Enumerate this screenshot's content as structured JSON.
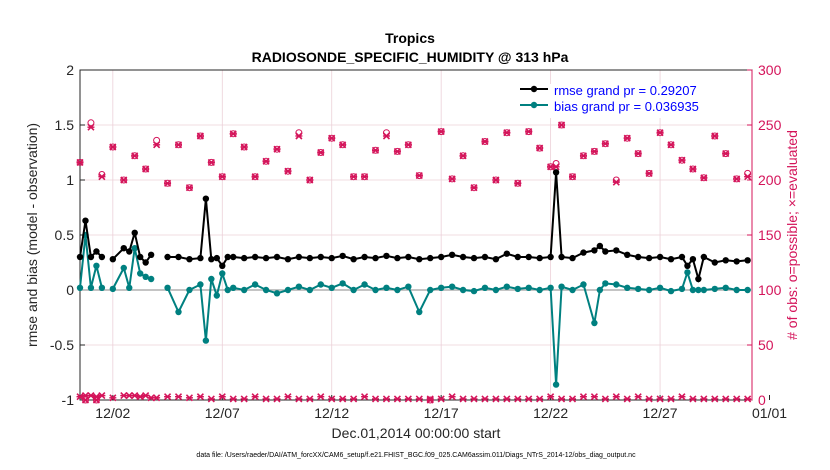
{
  "chart_data": {
    "type": "line",
    "title": "Tropics",
    "subtitle": "RADIOSONDE_SPECIFIC_HUMIDITY @ 313 hPa",
    "xlabel": "Dec.01,2014 00:00:00 start",
    "ylabel": "rmse and bias (model - observation)",
    "y2label": "# of obs: o=possible; ×=evaluated",
    "footnote": "data file: /Users/raeder/DAI/ATM_forcXX/CAM6_setup/f.e21.FHIST_BGC.f09_025.CAM6assim.011/Diags_NTrS_2014-12/obs_diag_output.nc",
    "xlim": [
      0.5,
      31.2
    ],
    "ylim": [
      -1,
      2
    ],
    "y2lim": [
      0,
      300
    ],
    "x_ticks": [
      2,
      7,
      12,
      17,
      22,
      27,
      32
    ],
    "x_tick_labels": [
      "12/02",
      "12/07",
      "12/12",
      "12/17",
      "12/22",
      "12/27",
      "01/01"
    ],
    "y_ticks": [
      -1,
      -0.5,
      0,
      0.5,
      1,
      1.5,
      2
    ],
    "y_tick_labels": [
      "-1",
      "-0.5",
      "0",
      "0.5",
      "1",
      "1.5",
      "2"
    ],
    "y2_ticks": [
      0,
      50,
      100,
      150,
      200,
      250,
      300
    ],
    "y2_tick_labels": [
      "0",
      "50",
      "100",
      "150",
      "200",
      "250",
      "300"
    ],
    "legend": {
      "placement": "top-right",
      "entries": [
        "rmse grand pr = 0.29207",
        "bias grand pr = 0.036935"
      ],
      "text_color": "#0000ff"
    },
    "colors": {
      "rmse": "#000000",
      "bias": "#008080",
      "obs": "#d4145a",
      "zero_line": "#b0b0b0",
      "text": "#262626",
      "grid": "#ebd0d8"
    },
    "series": [
      {
        "name": "rmse",
        "x": [
          0.5,
          0.75,
          1.0,
          1.25,
          1.5,
          1.75,
          2.0,
          2.5,
          2.75,
          3.0,
          3.25,
          3.5,
          3.75,
          4.0,
          4.5,
          5.0,
          5.5,
          6.0,
          6.25,
          6.5,
          6.75,
          7.0,
          7.25,
          7.5,
          8.0,
          8.5,
          9.0,
          9.5,
          10.0,
          10.5,
          11.0,
          11.5,
          12.0,
          12.5,
          13.0,
          13.5,
          14.0,
          14.5,
          15.0,
          15.5,
          16.0,
          16.5,
          17.0,
          17.5,
          18.0,
          18.5,
          19.0,
          19.5,
          20.0,
          20.5,
          21.0,
          21.5,
          22.0,
          22.25,
          22.5,
          23.0,
          23.5,
          24.0,
          24.25,
          24.5,
          25.0,
          25.5,
          26.0,
          26.5,
          27.0,
          27.5,
          28.0,
          28.25,
          28.5,
          28.75,
          29.0,
          29.5,
          30.0,
          30.5,
          31.0
        ],
        "y": [
          0.3,
          0.63,
          0.3,
          0.35,
          0.3,
          null,
          0.28,
          0.38,
          0.35,
          0.52,
          0.3,
          0.25,
          0.32,
          null,
          0.3,
          0.3,
          0.28,
          0.29,
          0.83,
          0.28,
          0.29,
          0.22,
          0.3,
          0.3,
          0.29,
          0.3,
          0.29,
          0.3,
          0.28,
          0.3,
          0.29,
          0.3,
          0.29,
          0.31,
          0.28,
          0.3,
          0.29,
          0.31,
          0.29,
          0.3,
          0.28,
          0.29,
          0.3,
          0.32,
          0.3,
          0.29,
          0.3,
          0.28,
          0.33,
          0.3,
          0.3,
          0.29,
          0.3,
          1.07,
          0.3,
          0.29,
          0.34,
          0.36,
          0.4,
          0.35,
          0.36,
          0.32,
          0.3,
          0.29,
          0.3,
          0.28,
          0.3,
          0.22,
          0.28,
          0.1,
          0.3,
          0.25,
          0.27,
          0.26,
          0.27
        ]
      },
      {
        "name": "bias",
        "x": [
          0.5,
          0.75,
          1.0,
          1.25,
          1.5,
          1.75,
          2.0,
          2.5,
          2.75,
          3.0,
          3.25,
          3.5,
          3.75,
          4.0,
          4.5,
          5.0,
          5.5,
          6.0,
          6.25,
          6.5,
          6.75,
          7.0,
          7.25,
          7.5,
          8.0,
          8.5,
          9.0,
          9.5,
          10.0,
          10.5,
          11.0,
          11.5,
          12.0,
          12.5,
          13.0,
          13.5,
          14.0,
          14.5,
          15.0,
          15.5,
          16.0,
          16.5,
          17.0,
          17.5,
          18.0,
          18.5,
          19.0,
          19.5,
          20.0,
          20.5,
          21.0,
          21.5,
          22.0,
          22.25,
          22.5,
          23.0,
          23.5,
          24.0,
          24.25,
          24.5,
          25.0,
          25.5,
          26.0,
          26.5,
          27.0,
          27.5,
          28.0,
          28.25,
          28.5,
          28.75,
          29.0,
          29.5,
          30.0,
          30.5,
          31.0
        ],
        "y": [
          0.02,
          0.5,
          0.02,
          0.22,
          0.02,
          null,
          0.01,
          0.2,
          0.02,
          0.38,
          0.15,
          0.12,
          0.1,
          null,
          0.02,
          -0.2,
          0.0,
          0.05,
          -0.46,
          0.1,
          -0.05,
          0.15,
          0.0,
          0.02,
          0.0,
          0.05,
          0.0,
          -0.03,
          0.0,
          0.03,
          0.0,
          0.05,
          0.02,
          0.06,
          0.0,
          0.05,
          0.0,
          0.02,
          0.0,
          0.03,
          -0.2,
          0.0,
          0.02,
          0.03,
          0.0,
          -0.01,
          0.02,
          0.0,
          0.03,
          0.01,
          0.02,
          0.0,
          0.02,
          -0.86,
          0.03,
          0.0,
          0.05,
          -0.3,
          0.0,
          0.06,
          0.05,
          0.02,
          0.01,
          0.0,
          0.02,
          -0.01,
          0.01,
          0.16,
          0.0,
          0.0,
          0.0,
          0.01,
          0.02,
          0.0,
          0.0
        ]
      },
      {
        "name": "obs_possible",
        "axis": "y2",
        "x": [
          0.5,
          0.75,
          1.0,
          1.25,
          1.5,
          2.0,
          2.5,
          3.0,
          3.5,
          4.0,
          4.5,
          5.0,
          5.5,
          6.0,
          6.5,
          7.0,
          7.5,
          8.0,
          8.5,
          9.0,
          9.5,
          10.0,
          10.5,
          11.0,
          11.5,
          12.0,
          12.5,
          13.0,
          13.5,
          14.0,
          14.5,
          15.0,
          15.5,
          16.0,
          16.5,
          17.0,
          17.5,
          18.0,
          18.5,
          19.0,
          19.5,
          20.0,
          20.5,
          21.0,
          21.5,
          22.0,
          22.25,
          22.5,
          23.0,
          23.5,
          24.0,
          24.5,
          25.0,
          25.5,
          26.0,
          26.5,
          27.0,
          27.5,
          28.0,
          28.5,
          29.0,
          29.5,
          30.0,
          30.5,
          31.0
        ],
        "y": [
          216,
          0,
          252,
          0,
          205,
          230,
          200,
          222,
          210,
          236,
          197,
          232,
          193,
          240,
          216,
          203,
          242,
          230,
          203,
          217,
          228,
          208,
          243,
          200,
          225,
          238,
          232,
          203,
          203,
          227,
          243,
          226,
          232,
          204,
          0,
          244,
          201,
          222,
          193,
          235,
          200,
          243,
          197,
          244,
          229,
          212,
          215,
          250,
          203,
          222,
          226,
          233,
          200,
          238,
          224,
          206,
          243,
          232,
          218,
          210,
          202,
          240,
          224,
          201,
          206
        ]
      },
      {
        "name": "obs_evaluated",
        "axis": "y2",
        "x": [
          0.5,
          0.75,
          1.0,
          1.25,
          1.5,
          2.0,
          2.5,
          3.0,
          3.5,
          4.0,
          4.5,
          5.0,
          5.5,
          6.0,
          6.5,
          7.0,
          7.5,
          8.0,
          8.5,
          9.0,
          9.5,
          10.0,
          10.5,
          11.0,
          11.5,
          12.0,
          12.5,
          13.0,
          13.5,
          14.0,
          14.5,
          15.0,
          15.5,
          16.0,
          16.5,
          17.0,
          17.5,
          18.0,
          18.5,
          19.0,
          19.5,
          20.0,
          20.5,
          21.0,
          21.5,
          22.0,
          22.25,
          22.5,
          23.0,
          23.5,
          24.0,
          24.5,
          25.0,
          25.5,
          26.0,
          26.5,
          27.0,
          27.5,
          28.0,
          28.5,
          29.0,
          29.5,
          30.0,
          30.5,
          31.0
        ],
        "y": [
          216,
          0,
          248,
          0,
          203,
          230,
          200,
          222,
          210,
          232,
          197,
          232,
          193,
          240,
          216,
          203,
          242,
          230,
          203,
          217,
          228,
          208,
          240,
          200,
          225,
          238,
          232,
          203,
          203,
          227,
          240,
          226,
          232,
          204,
          0,
          244,
          201,
          222,
          193,
          235,
          200,
          243,
          197,
          244,
          229,
          212,
          212,
          250,
          203,
          222,
          226,
          233,
          198,
          238,
          224,
          206,
          243,
          232,
          218,
          210,
          202,
          240,
          224,
          201,
          203
        ]
      },
      {
        "name": "obs_bottom",
        "axis": "y2",
        "x": [
          0.5,
          0.75,
          1.0,
          1.25,
          1.5,
          2.0,
          2.5,
          2.75,
          3.0,
          3.25,
          3.5,
          3.75,
          4.0,
          4.5,
          5.0,
          5.5,
          6.0,
          6.5,
          7.0,
          7.5,
          8.0,
          8.5,
          9.0,
          9.5,
          10.0,
          10.5,
          11.0,
          11.5,
          12.0,
          12.5,
          13.0,
          13.5,
          14.0,
          14.5,
          15.0,
          15.5,
          16.0,
          16.5,
          17.0,
          17.5,
          18.0,
          18.5,
          19.0,
          19.5,
          20.0,
          20.5,
          21.0,
          21.5,
          22.0,
          22.5,
          23.0,
          23.5,
          24.0,
          24.5,
          25.0,
          25.5,
          26.0,
          26.5,
          27.0,
          27.5,
          28.0,
          28.5,
          29.0,
          29.5,
          30.0,
          30.5,
          31.0
        ],
        "y": [
          3,
          4,
          4,
          3,
          4,
          2,
          4,
          4,
          4,
          3,
          4,
          2,
          2,
          3,
          3,
          2,
          3,
          1,
          3,
          1,
          1,
          3,
          1,
          1,
          3,
          1,
          1,
          3,
          1,
          1,
          1,
          3,
          1,
          1,
          1,
          1,
          1,
          1,
          1,
          3,
          1,
          1,
          1,
          1,
          1,
          1,
          1,
          1,
          3,
          1,
          1,
          3,
          3,
          1,
          3,
          1,
          3,
          1,
          1,
          1,
          3,
          1,
          1,
          1,
          1,
          1,
          1
        ]
      }
    ]
  }
}
